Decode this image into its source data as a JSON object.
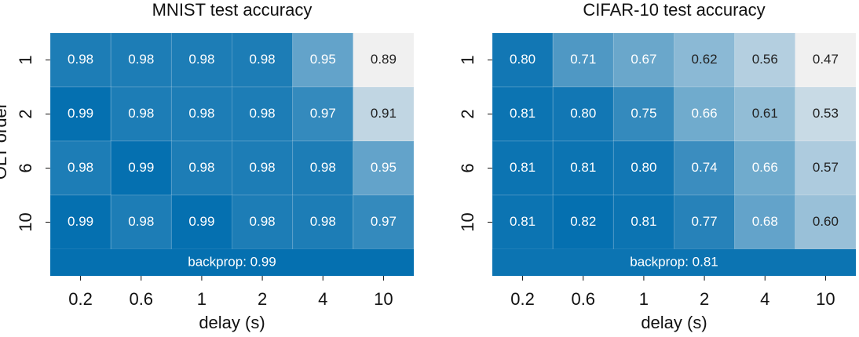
{
  "chart_data": [
    {
      "type": "heatmap",
      "title": "MNIST test accuracy",
      "xlabel": "delay (s)",
      "ylabel": "OLT order",
      "categories": [
        "0.2",
        "0.6",
        "1",
        "2",
        "4",
        "10"
      ],
      "rows": [
        "1",
        "2",
        "6",
        "10"
      ],
      "values": [
        [
          0.98,
          0.98,
          0.98,
          0.98,
          0.95,
          0.89
        ],
        [
          0.99,
          0.98,
          0.98,
          0.98,
          0.97,
          0.91
        ],
        [
          0.98,
          0.99,
          0.98,
          0.98,
          0.98,
          0.95
        ],
        [
          0.99,
          0.98,
          0.99,
          0.98,
          0.98,
          0.97
        ]
      ],
      "baseline": {
        "value": 0.99,
        "label": "backprop: 0.99"
      },
      "colors": [
        "#f0f0f0",
        "#0570b0"
      ]
    },
    {
      "type": "heatmap",
      "title": "CIFAR-10 test accuracy",
      "xlabel": "delay (s)",
      "categories": [
        "0.2",
        "0.6",
        "1",
        "2",
        "4",
        "10"
      ],
      "rows": [
        "1",
        "2",
        "6",
        "10"
      ],
      "values": [
        [
          0.8,
          0.71,
          0.67,
          0.62,
          0.56,
          0.47
        ],
        [
          0.81,
          0.8,
          0.75,
          0.66,
          0.61,
          0.53
        ],
        [
          0.81,
          0.81,
          0.8,
          0.74,
          0.66,
          0.57
        ],
        [
          0.81,
          0.82,
          0.81,
          0.77,
          0.68,
          0.6
        ]
      ],
      "value_labels": [
        [
          "0.80",
          "0.71",
          "0.67",
          "0.62",
          "0.56",
          "0.47"
        ],
        [
          "0.81",
          "0.80",
          "0.75",
          "0.66",
          "0.61",
          "0.53"
        ],
        [
          "0.81",
          "0.81",
          "0.80",
          "0.74",
          "0.66",
          "0.57"
        ],
        [
          "0.81",
          "0.82",
          "0.81",
          "0.77",
          "0.68",
          "0.60"
        ]
      ],
      "baseline": {
        "value": 0.81,
        "label": "backprop: 0.81"
      },
      "colors": [
        "#f0f0f0",
        "#0570b0"
      ]
    }
  ]
}
